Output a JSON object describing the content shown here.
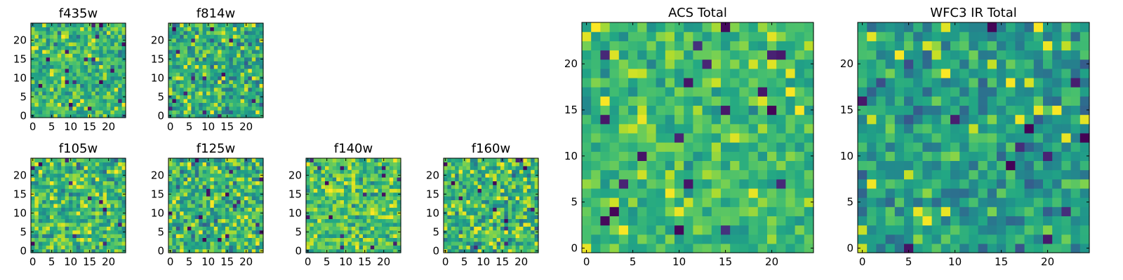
{
  "chart_data": {
    "type": "heatmap",
    "colormap": "viridis",
    "grid": false,
    "panels": [
      {
        "title": "f435w",
        "xticks": [
          "0",
          "5",
          "10",
          "15",
          "20"
        ],
        "yticks": [
          "0",
          "5",
          "10",
          "15",
          "20"
        ],
        "size": 25,
        "mean": 0.66,
        "spread": 0.22,
        "seed": 11
      },
      {
        "title": "f814w",
        "xticks": [
          "0",
          "5",
          "10",
          "15",
          "20"
        ],
        "yticks": [
          "0",
          "5",
          "10",
          "15",
          "20"
        ],
        "size": 25,
        "mean": 0.62,
        "spread": 0.24,
        "seed": 23
      },
      {
        "title": "f105w",
        "xticks": [
          "0",
          "5",
          "10",
          "15",
          "20"
        ],
        "yticks": [
          "0",
          "5",
          "10",
          "15",
          "20"
        ],
        "size": 25,
        "mean": 0.68,
        "spread": 0.25,
        "seed": 37
      },
      {
        "title": "f125w",
        "xticks": [
          "0",
          "5",
          "10",
          "15",
          "20"
        ],
        "yticks": [
          "0",
          "5",
          "10",
          "15",
          "20"
        ],
        "size": 25,
        "mean": 0.64,
        "spread": 0.26,
        "seed": 41
      },
      {
        "title": "f140w",
        "xticks": [
          "0",
          "5",
          "10",
          "15",
          "20"
        ],
        "yticks": [
          "0",
          "5",
          "10",
          "15",
          "20"
        ],
        "size": 25,
        "mean": 0.72,
        "spread": 0.22,
        "seed": 53
      },
      {
        "title": "f160w",
        "xticks": [
          "0",
          "5",
          "10",
          "15",
          "20"
        ],
        "yticks": [
          "0",
          "5",
          "10",
          "15",
          "20"
        ],
        "size": 25,
        "mean": 0.66,
        "spread": 0.24,
        "seed": 67
      },
      {
        "title": "ACS Total",
        "xticks": [
          "0",
          "5",
          "10",
          "15",
          "20"
        ],
        "yticks": [
          "0",
          "5",
          "10",
          "15",
          "20"
        ],
        "size": 25,
        "mean": 0.68,
        "spread": 0.17,
        "seed": 79
      },
      {
        "title": "WFC3 IR Total",
        "xticks": [
          "0",
          "5",
          "10",
          "15",
          "20"
        ],
        "yticks": [
          "0",
          "5",
          "10",
          "15",
          "20"
        ],
        "size": 25,
        "mean": 0.55,
        "spread": 0.2,
        "seed": 97
      }
    ]
  }
}
